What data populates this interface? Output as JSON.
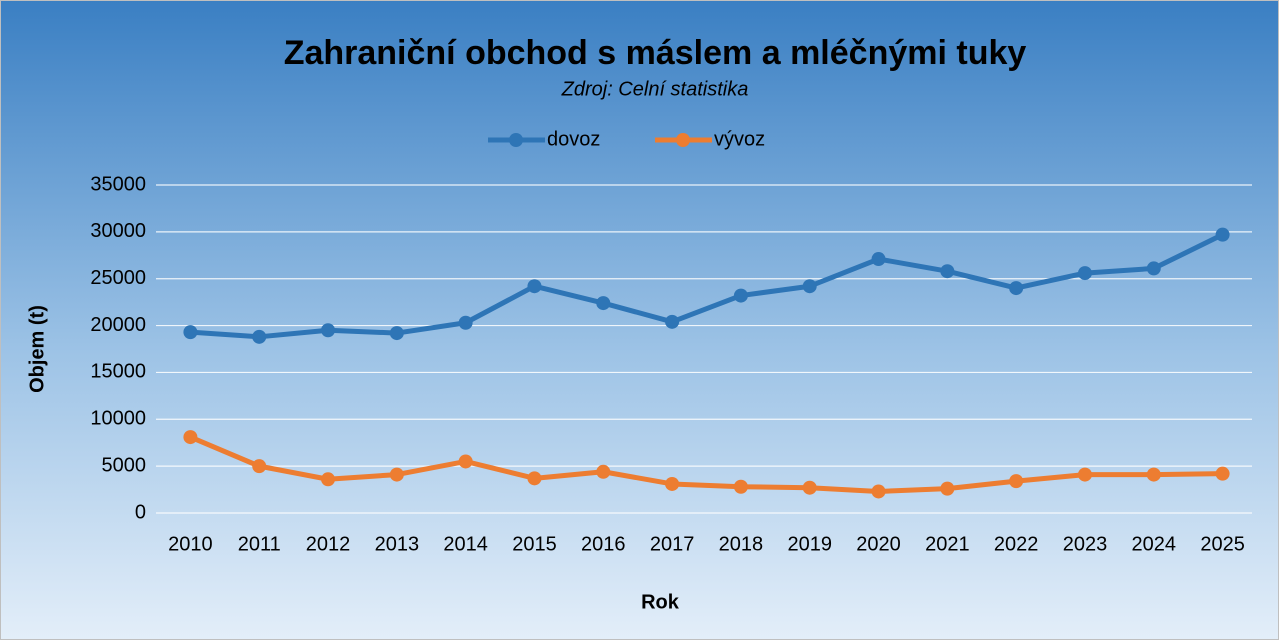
{
  "chart_data": {
    "type": "line",
    "title": "Zahraniční obchod s máslem a mléčnými tuky",
    "subtitle": "Zdroj: Celní statistika",
    "x_label": "Rok",
    "y_label": "Objem (t)",
    "categories": [
      "2010",
      "2011",
      "2012",
      "2013",
      "2014",
      "2015",
      "2016",
      "2017",
      "2018",
      "2019",
      "2020",
      "2021",
      "2022",
      "2023",
      "2024",
      "2025"
    ],
    "series": [
      {
        "name": "dovoz",
        "color": "#2e75b6",
        "values": [
          19300,
          18800,
          19500,
          19200,
          20300,
          24200,
          22400,
          20400,
          23200,
          24200,
          27100,
          25800,
          24000,
          25600,
          26100,
          29700
        ]
      },
      {
        "name": "vývoz",
        "color": "#ed7d31",
        "values": [
          8100,
          5000,
          3600,
          4100,
          5500,
          3700,
          4400,
          3100,
          2800,
          2700,
          2300,
          2600,
          3400,
          4100,
          4100,
          4200
        ]
      }
    ],
    "ylim": [
      0,
      35000
    ],
    "yticks": [
      0,
      5000,
      10000,
      15000,
      20000,
      25000,
      30000,
      35000
    ],
    "grid": true,
    "legend": "top"
  }
}
